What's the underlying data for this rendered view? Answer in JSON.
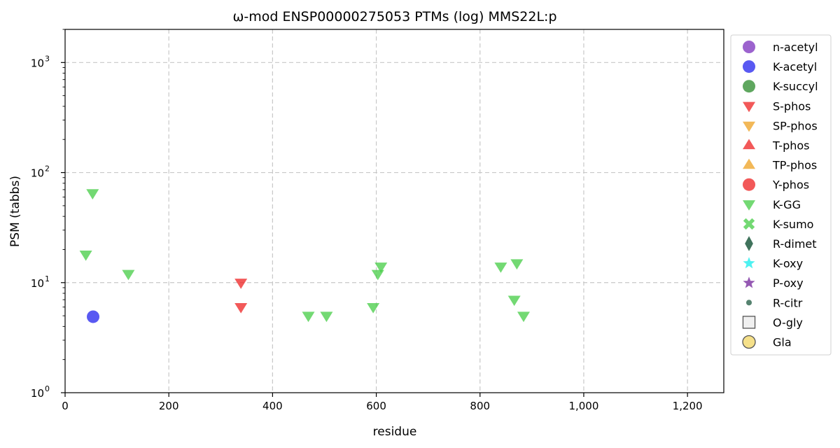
{
  "chart_data": {
    "type": "scatter",
    "title": "ω-mod ENSP00000275053 PTMs (log) MMS22L:p",
    "xlabel": "residue",
    "ylabel": "PSM (tabbs)",
    "xlim": [
      0,
      1270
    ],
    "ylim": [
      1,
      2000
    ],
    "yscale": "log",
    "grid": true,
    "legend_position": "outside-right",
    "x_ticks": [
      {
        "value": 0,
        "label": "0"
      },
      {
        "value": 200,
        "label": "200"
      },
      {
        "value": 400,
        "label": "400"
      },
      {
        "value": 600,
        "label": "600"
      },
      {
        "value": 800,
        "label": "800"
      },
      {
        "value": 1000,
        "label": "1,000"
      },
      {
        "value": 1200,
        "label": "1,200"
      }
    ],
    "y_ticks": [
      {
        "value": 1,
        "base": "10",
        "exp": "0"
      },
      {
        "value": 10,
        "base": "10",
        "exp": "1"
      },
      {
        "value": 100,
        "base": "10",
        "exp": "2"
      },
      {
        "value": 1000,
        "base": "10",
        "exp": "3"
      }
    ],
    "legend": [
      {
        "name": "n-acetyl",
        "marker": "circle",
        "color": "#7b2fbe"
      },
      {
        "name": "K-acetyl",
        "marker": "circle",
        "color": "#2222ee"
      },
      {
        "name": "K-succyl",
        "marker": "circle",
        "color": "#2a8a2a"
      },
      {
        "name": "S-phos",
        "marker": "triangle-down",
        "color": "#ee2222"
      },
      {
        "name": "SP-phos",
        "marker": "triangle-down",
        "color": "#eea020"
      },
      {
        "name": "T-phos",
        "marker": "triangle-up",
        "color": "#ee2222"
      },
      {
        "name": "TP-phos",
        "marker": "triangle-up",
        "color": "#eea020"
      },
      {
        "name": "Y-phos",
        "marker": "circle",
        "color": "#ee2222"
      },
      {
        "name": "K-GG",
        "marker": "triangle-down",
        "color": "#44cc44"
      },
      {
        "name": "K-sumo",
        "marker": "x",
        "color": "#44cc44"
      },
      {
        "name": "R-dimet",
        "marker": "diamond",
        "color": "#1e5a40"
      },
      {
        "name": "K-oxy",
        "marker": "star",
        "color": "#22eeee"
      },
      {
        "name": "P-oxy",
        "marker": "star",
        "color": "#7b2fa0"
      },
      {
        "name": "R-citr",
        "marker": "small-circle",
        "color": "#1e5a40"
      },
      {
        "name": "O-gly",
        "marker": "square-open",
        "color": "#555555"
      },
      {
        "name": "Gla",
        "marker": "circle-gold",
        "color": "#f5e08a"
      }
    ],
    "series": [
      {
        "name": "K-acetyl",
        "marker": "circle",
        "color": "#2222ee",
        "points": [
          [
            54,
            4.9
          ]
        ]
      },
      {
        "name": "S-phos",
        "marker": "triangle-down",
        "color": "#ee2222",
        "points": [
          [
            339,
            10
          ],
          [
            339,
            6
          ]
        ]
      },
      {
        "name": "K-GG",
        "marker": "triangle-down",
        "color": "#44cc44",
        "points": [
          [
            53,
            65
          ],
          [
            40,
            18
          ],
          [
            122,
            12
          ],
          [
            469,
            5
          ],
          [
            504,
            5
          ],
          [
            594,
            6
          ],
          [
            603,
            12
          ],
          [
            609,
            14
          ],
          [
            840,
            14
          ],
          [
            871,
            15
          ],
          [
            866,
            7
          ],
          [
            884,
            5
          ]
        ]
      }
    ]
  }
}
